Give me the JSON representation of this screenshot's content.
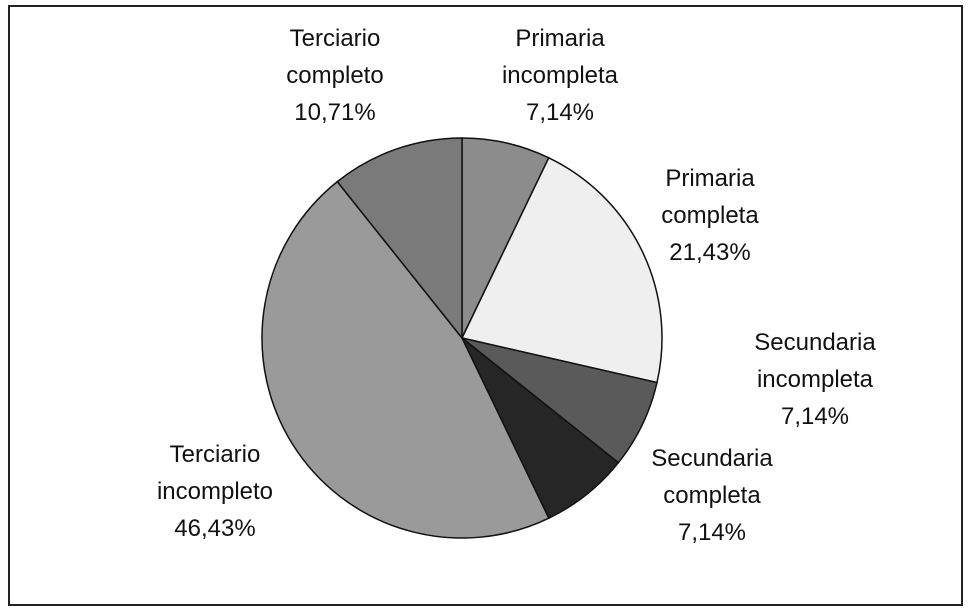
{
  "chart_data": {
    "type": "pie",
    "categories": [
      "Primaria incompleta",
      "Primaria completa",
      "Secundaria incompleta",
      "Secundaria completa",
      "Terciario incompleto",
      "Terciario completo"
    ],
    "values": [
      7.14,
      21.43,
      7.14,
      7.14,
      46.43,
      10.71
    ],
    "value_labels": [
      "7,14%",
      "21,43%",
      "7,14%",
      "7,14%",
      "46,43%",
      "10,71%"
    ],
    "colors": [
      "#8c8c8c",
      "#efefef",
      "#5a5a5a",
      "#262626",
      "#9a9a9a",
      "#7a7a7a"
    ]
  }
}
